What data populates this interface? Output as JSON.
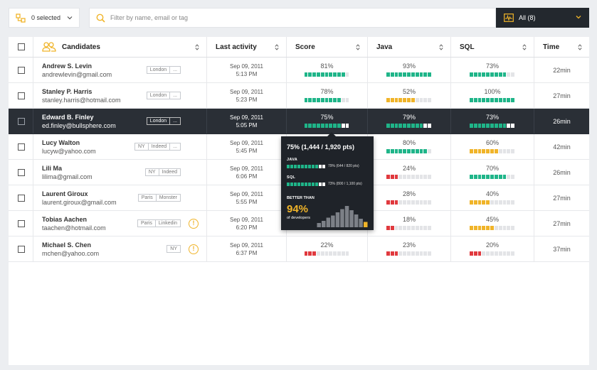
{
  "topbar": {
    "selected_label": "0 selected",
    "search_placeholder": "Filter by name, email or tag",
    "filter_label": "All (8)"
  },
  "columns": {
    "candidates": "Candidates",
    "last_activity": "Last activity",
    "score": "Score",
    "java": "Java",
    "sql": "SQL",
    "time": "Time"
  },
  "colors": {
    "green": "#1fb589",
    "yellow": "#f0b429",
    "red": "#e0393e",
    "empty": "#e3e4e7",
    "dark": "#2a2f36"
  },
  "candidates": [
    {
      "name": "Andrew S. Levin",
      "email": "andrewlevin@gmail.com",
      "tags": [
        "London",
        "..."
      ],
      "warn": false,
      "date": "Sep 09, 2011",
      "time_of_day": "5:13 PM",
      "score": {
        "label": "81%",
        "filled": 10,
        "color": "green"
      },
      "java": {
        "label": "93%",
        "filled": 11,
        "color": "green"
      },
      "sql": {
        "label": "73%",
        "filled": 9,
        "color": "green"
      },
      "time": "22min"
    },
    {
      "name": "Stanley P. Harris",
      "email": "stanley.harris@hotmail.com",
      "tags": [
        "London",
        "..."
      ],
      "warn": false,
      "date": "Sep 09, 2011",
      "time_of_day": "5:23 PM",
      "score": {
        "label": "78%",
        "filled": 9,
        "color": "green"
      },
      "java": {
        "label": "52%",
        "filled": 7,
        "color": "yellow"
      },
      "sql": {
        "label": "100%",
        "filled": 11,
        "color": "green"
      },
      "time": "27min"
    },
    {
      "name": "Edward B. Finley",
      "email": "ed.finley@bullsphere.com",
      "tags": [
        "London",
        "..."
      ],
      "warn": false,
      "date": "Sep 09, 2011",
      "time_of_day": "5:05 PM",
      "score": {
        "label": "75%",
        "filled": 9,
        "color": "green"
      },
      "java": {
        "label": "79%",
        "filled": 9,
        "color": "green"
      },
      "sql": {
        "label": "73%",
        "filled": 9,
        "color": "green"
      },
      "time": "26min",
      "active": true
    },
    {
      "name": "Lucy Walton",
      "email": "lucyw@yahoo.com",
      "tags": [
        "NY",
        "Indeed",
        "..."
      ],
      "warn": false,
      "date": "Sep 09, 2011",
      "time_of_day": "5:45 PM",
      "score": {
        "label": "",
        "filled": 0,
        "color": "green"
      },
      "java": {
        "label": "80%",
        "filled": 10,
        "color": "green"
      },
      "sql": {
        "label": "60%",
        "filled": 7,
        "color": "yellow"
      },
      "time": "42min"
    },
    {
      "name": "Lili Ma",
      "email": "lilima@gmail.com",
      "tags": [
        "NY",
        "Indeed"
      ],
      "warn": false,
      "date": "Sep 09, 2011",
      "time_of_day": "6:06 PM",
      "score": {
        "label": "",
        "filled": 0,
        "color": "green"
      },
      "java": {
        "label": "24%",
        "filled": 3,
        "color": "red"
      },
      "sql": {
        "label": "70%",
        "filled": 9,
        "color": "green"
      },
      "time": "26min"
    },
    {
      "name": "Laurent Giroux",
      "email": "laurent.giroux@gmail.com",
      "tags": [
        "Paris",
        "Monster"
      ],
      "warn": false,
      "date": "Sep 09, 2011",
      "time_of_day": "5:55 PM",
      "score": {
        "label": "",
        "filled": 0,
        "color": "green"
      },
      "java": {
        "label": "28%",
        "filled": 3,
        "color": "red"
      },
      "sql": {
        "label": "40%",
        "filled": 5,
        "color": "yellow"
      },
      "time": "27min"
    },
    {
      "name": "Tobias Aachen",
      "email": "taachen@hotmail.com",
      "tags": [
        "Paris",
        "Linkedin"
      ],
      "warn": true,
      "date": "Sep 09, 2011",
      "time_of_day": "6:20 PM",
      "score": {
        "label": "",
        "filled": 0,
        "color": "green"
      },
      "java": {
        "label": "18%",
        "filled": 2,
        "color": "red"
      },
      "sql": {
        "label": "45%",
        "filled": 6,
        "color": "yellow"
      },
      "time": "27min"
    },
    {
      "name": "Michael S. Chen",
      "email": "mchen@yahoo.com",
      "tags": [
        "NY"
      ],
      "warn": true,
      "date": "Sep 09, 2011",
      "time_of_day": "6:37 PM",
      "score": {
        "label": "22%",
        "filled": 3,
        "color": "red"
      },
      "java": {
        "label": "23%",
        "filled": 3,
        "color": "red"
      },
      "sql": {
        "label": "20%",
        "filled": 3,
        "color": "red"
      },
      "time": "37min"
    }
  ],
  "tooltip": {
    "title": "75% (1,444 / 1,920 pts)",
    "java_label": "JAVA",
    "java_value": "79% (644 / 820 pts)",
    "java_filled": 9,
    "sql_label": "SQL",
    "sql_value": "73% (800 / 1,100 pts)",
    "sql_filled": 9,
    "better_label": "BETTER THAN",
    "better_pct": "94%",
    "better_sub": "of developers",
    "histogram": [
      0.2,
      0.3,
      0.45,
      0.55,
      0.7,
      0.85,
      1.0,
      0.8,
      0.6,
      0.4,
      0.25
    ],
    "marker_index": 10
  }
}
